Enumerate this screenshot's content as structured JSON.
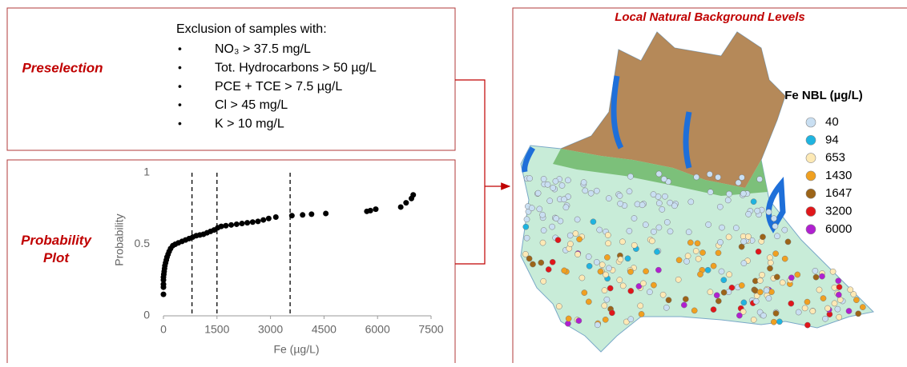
{
  "preselection": {
    "label": "Preselection",
    "heading": "Exclusion of samples with:",
    "items": [
      "NO₃ > 37.5 mg/L",
      "Tot. Hydrocarbons > 50 µg/L",
      "PCE + TCE > 7.5 µg/L",
      "Cl > 45 mg/L",
      "K > 10 mg/L"
    ]
  },
  "probability_plot": {
    "label": "Probability Plot",
    "y_label": "Probability",
    "x_label": "Fe (µg/L)",
    "xlim": [
      0,
      7500
    ],
    "ylim": [
      0,
      1
    ],
    "xticks": [
      0,
      1500,
      3000,
      4500,
      6000,
      7500
    ],
    "yticks": [
      0,
      0.5,
      1
    ],
    "thresholds": [
      800,
      1500,
      3550
    ],
    "x": [
      0,
      0,
      0,
      0,
      0,
      10,
      20,
      30,
      40,
      60,
      80,
      100,
      130,
      160,
      200,
      260,
      330,
      420,
      520,
      620,
      720,
      820,
      920,
      1020,
      1120,
      1220,
      1320,
      1420,
      1520,
      1620,
      1750,
      1900,
      2050,
      2200,
      2350,
      2500,
      2650,
      2800,
      2950,
      3150,
      3600,
      3900,
      4150,
      4550,
      5700,
      5800,
      5950,
      6650,
      6800,
      6950,
      7000
    ],
    "y": [
      0.15,
      0.2,
      0.22,
      0.25,
      0.27,
      0.29,
      0.31,
      0.33,
      0.35,
      0.37,
      0.39,
      0.41,
      0.43,
      0.45,
      0.47,
      0.49,
      0.5,
      0.51,
      0.52,
      0.53,
      0.54,
      0.55,
      0.56,
      0.565,
      0.57,
      0.58,
      0.59,
      0.6,
      0.615,
      0.625,
      0.63,
      0.635,
      0.64,
      0.645,
      0.65,
      0.655,
      0.66,
      0.67,
      0.68,
      0.69,
      0.7,
      0.705,
      0.71,
      0.715,
      0.73,
      0.735,
      0.745,
      0.76,
      0.79,
      0.82,
      0.845
    ]
  },
  "map": {
    "title": "Local Natural Background Levels",
    "legend": {
      "title": "Fe NBL (µg/L)",
      "items": [
        {
          "value": 40,
          "color": "#c9dff2"
        },
        {
          "value": 94,
          "color": "#1fb4e0"
        },
        {
          "value": 653,
          "color": "#fde9b5"
        },
        {
          "value": 1430,
          "color": "#f0a020"
        },
        {
          "value": 1647,
          "color": "#9c6418"
        },
        {
          "value": 3200,
          "color": "#e0161a"
        },
        {
          "value": 6000,
          "color": "#b020d0"
        }
      ]
    }
  }
}
